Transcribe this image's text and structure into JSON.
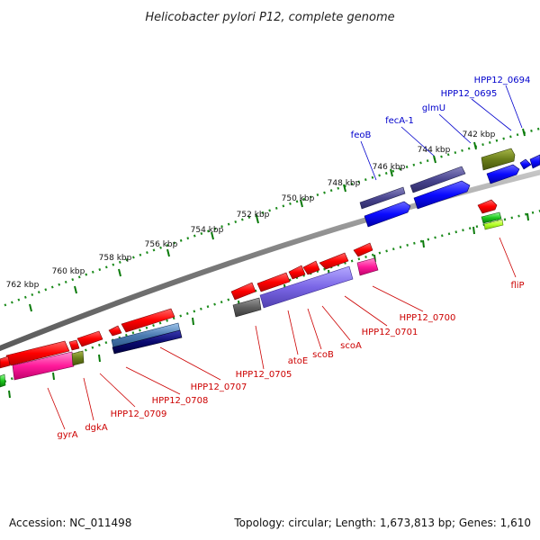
{
  "title": "Helicobacter pylori P12, complete genome",
  "accession": "Accession: NC_011498",
  "summary": "Topology: circular; Length: 1,673,813 bp; Genes: 1,610",
  "colors": {
    "backbone": "#888888",
    "tick": "#0a7a0a",
    "label_forward": "#0000cc",
    "label_reverse": "#cc0000"
  },
  "kbp_labels": [
    "742 kbp",
    "744 kbp",
    "746 kbp",
    "748 kbp",
    "750 kbp",
    "752 kbp",
    "754 kbp",
    "756 kbp",
    "758 kbp",
    "760 kbp",
    "762 kbp"
  ],
  "forward_gene_labels": [
    "HPP12_0694",
    "HPP12_0695",
    "glmU",
    "fecA-1",
    "feoB"
  ],
  "reverse_gene_labels": [
    "fliP",
    "HPP12_0700",
    "HPP12_0701",
    "scoA",
    "scoB",
    "atoE",
    "HPP12_0705",
    "HPP12_0707",
    "HPP12_0708",
    "HPP12_0709",
    "dgkA",
    "gyrA"
  ]
}
